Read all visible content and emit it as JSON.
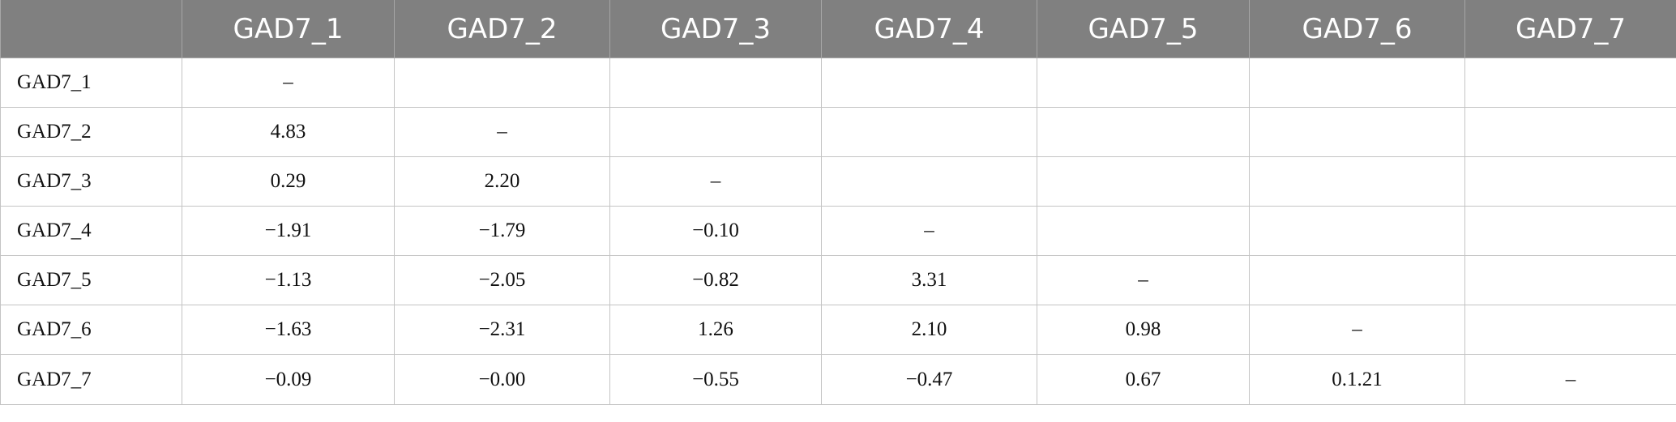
{
  "table": {
    "columns": [
      "",
      "GAD7_1",
      "GAD7_2",
      "GAD7_3",
      "GAD7_4",
      "GAD7_5",
      "GAD7_6",
      "GAD7_7"
    ],
    "rows": [
      [
        "GAD7_1",
        "–",
        "",
        "",
        "",
        "",
        "",
        ""
      ],
      [
        "GAD7_2",
        "4.83",
        "–",
        "",
        "",
        "",
        "",
        ""
      ],
      [
        "GAD7_3",
        "0.29",
        "2.20",
        "–",
        "",
        "",
        "",
        ""
      ],
      [
        "GAD7_4",
        "−1.91",
        "−1.79",
        "−0.10",
        "–",
        "",
        "",
        ""
      ],
      [
        "GAD7_5",
        "−1.13",
        "−2.05",
        "−0.82",
        "3.31",
        "–",
        "",
        ""
      ],
      [
        "GAD7_6",
        "−1.63",
        "−2.31",
        "1.26",
        "2.10",
        "0.98",
        "–",
        ""
      ],
      [
        "GAD7_7",
        "−0.09",
        "−0.00",
        "−0.55",
        "−0.47",
        "0.67",
        "0.1.21",
        "–"
      ]
    ]
  }
}
